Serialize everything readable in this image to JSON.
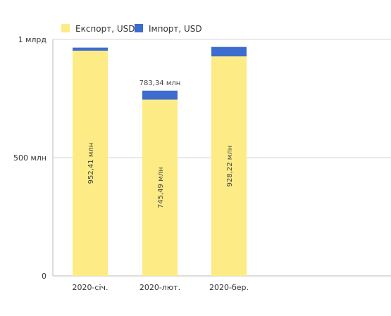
{
  "chart_data": {
    "type": "bar",
    "stacked": true,
    "categories": [
      "2020-січ.",
      "2020-лют.",
      "2020-бер."
    ],
    "series": [
      {
        "name": "Експорт, USD",
        "color": "#fdeb85",
        "values": [
          952.41,
          745.49,
          928.22
        ]
      },
      {
        "name": "Імпорт, USD",
        "color": "#3d6ccf",
        "values": [
          13,
          37.85,
          40
        ]
      }
    ],
    "bar_labels": {
      "inside": [
        "952,41 млн",
        "745,49 млн",
        "928,22 млн"
      ],
      "top": [
        "",
        "783,34 млн",
        ""
      ]
    },
    "ylim": [
      0,
      1000
    ],
    "y_ticks": [
      {
        "value": 0,
        "label": "0"
      },
      {
        "value": 500,
        "label": "500 млн"
      },
      {
        "value": 1000,
        "label": "1 млрд"
      }
    ],
    "legend_position": "top-left",
    "grid": true
  }
}
